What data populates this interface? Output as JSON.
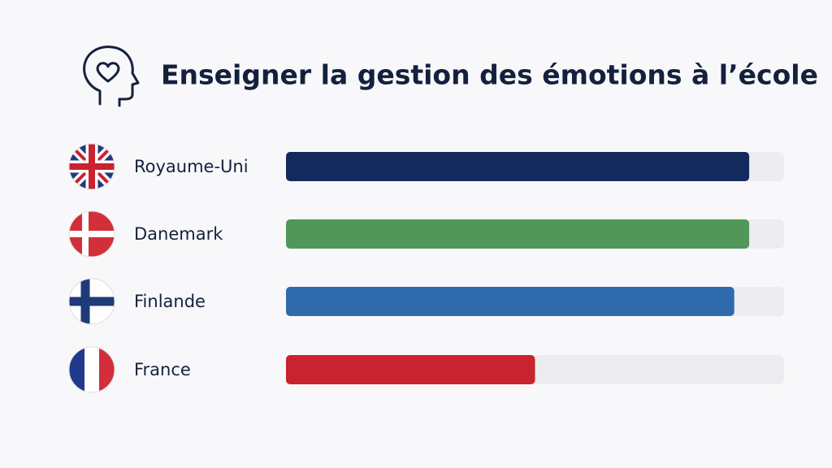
{
  "chart_data": {
    "type": "bar",
    "orientation": "horizontal",
    "title": "Enseigner la gestion des émotions à l’école",
    "categories": [
      "Royaume-Uni",
      "Danemark",
      "Finlande",
      "France"
    ],
    "values": [
      93,
      93,
      90,
      50
    ],
    "colors": [
      "#132b5c",
      "#52975a",
      "#2f6aac",
      "#c8232e"
    ],
    "xlim": [
      0,
      100
    ]
  }
}
